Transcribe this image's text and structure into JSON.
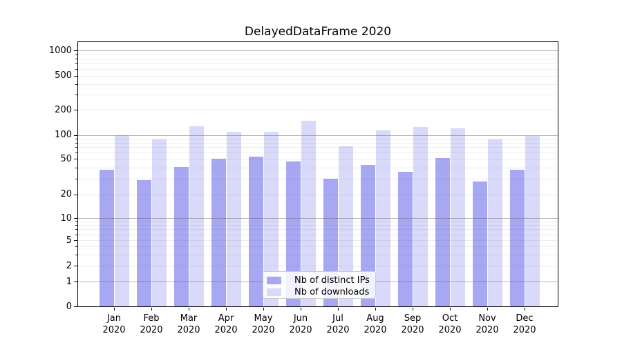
{
  "title": "DelayedDataFrame 2020",
  "legend": {
    "items": [
      {
        "label": "Nb of distinct IPs",
        "color": "#a7a7f3"
      },
      {
        "label": "Nb of downloads",
        "color": "#d9d9f9"
      }
    ]
  },
  "chart_data": {
    "type": "bar",
    "title": "DelayedDataFrame 2020",
    "x": {
      "months": [
        "Jan",
        "Feb",
        "Mar",
        "Apr",
        "May",
        "Jun",
        "Jul",
        "Aug",
        "Sep",
        "Oct",
        "Nov",
        "Dec"
      ],
      "year": "2020"
    },
    "series": [
      {
        "name": "Nb of distinct IPs",
        "color": "#a7a7f3",
        "values": [
          38,
          29,
          41,
          51,
          54,
          47,
          30,
          43,
          36,
          52,
          28,
          38
        ]
      },
      {
        "name": "Nb of downloads",
        "color": "#d9d9f9",
        "values": [
          100,
          88,
          128,
          110,
          109,
          148,
          72,
          115,
          125,
          121,
          89,
          98
        ]
      }
    ],
    "yscale": "symlog",
    "y_ticks": [
      0,
      1,
      2,
      5,
      10,
      20,
      50,
      100,
      200,
      500,
      1000
    ],
    "ylim": [
      0,
      1300
    ],
    "grid": true,
    "legend_position": "lower center"
  }
}
